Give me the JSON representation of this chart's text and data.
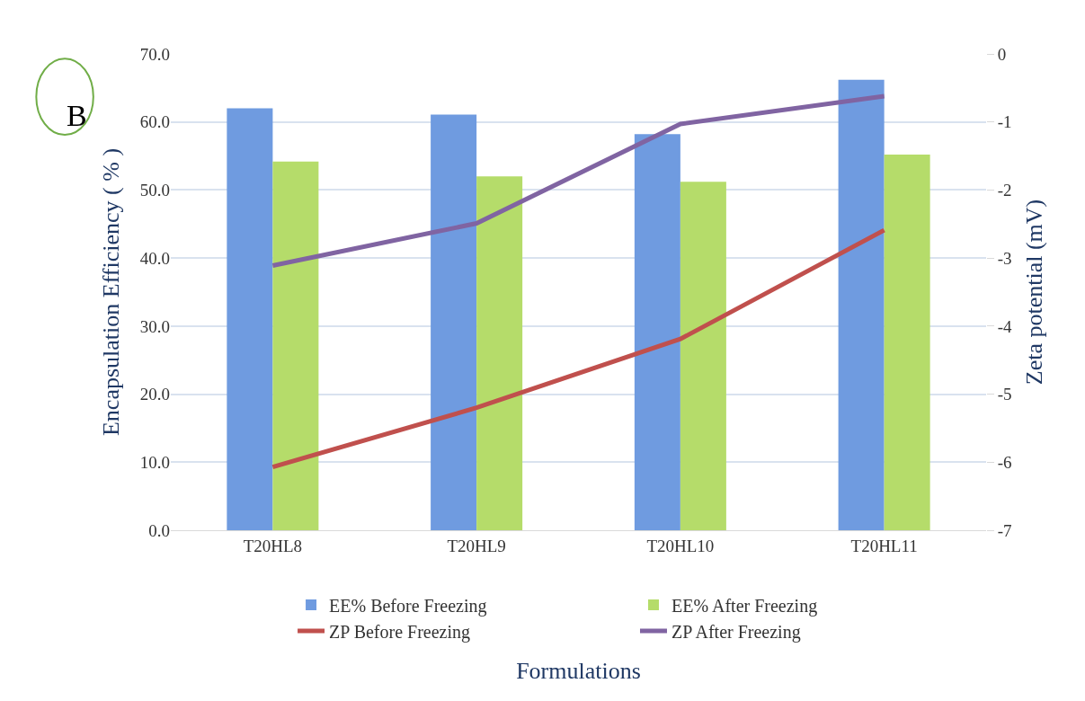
{
  "chart_data": {
    "type": "bar",
    "categories": [
      "T20HL8",
      "T20HL9",
      "T20HL10",
      "T20HL11"
    ],
    "xlabel": "Formulations",
    "ylabel": "Encapsulation Efficiency ( % )",
    "y2label": "Zeta potential (mV)",
    "annotations": [
      "B"
    ],
    "series": [
      {
        "name": "EE% Before Freezing",
        "color": "#6f9be0",
        "values": [
          62.0,
          61.1,
          58.2,
          66.2
        ]
      },
      {
        "name": "EE% After Freezing",
        "color": "#b5dc6a",
        "values": [
          54.2,
          52.0,
          51.2,
          55.2
        ]
      },
      {
        "name": "ZP Before Freezing",
        "type": "line",
        "axis": "y2",
        "color": "#c0504d",
        "values": [
          -6.07,
          -5.2,
          -4.19,
          -2.59
        ]
      },
      {
        "name": "ZP After Freezing",
        "type": "line",
        "axis": "y2",
        "color": "#8064a2",
        "values": [
          -3.11,
          -2.49,
          -1.03,
          -0.62
        ]
      }
    ],
    "ylim": [
      0,
      70
    ],
    "yticks": [
      {
        "value": 0,
        "label": "0.0"
      },
      {
        "value": 10,
        "label": "10.0"
      },
      {
        "value": 20,
        "label": "20.0"
      },
      {
        "value": 30,
        "label": "30.0"
      },
      {
        "value": 40,
        "label": "40.0"
      },
      {
        "value": 50,
        "label": "50.0"
      },
      {
        "value": 60,
        "label": "60.0"
      },
      {
        "value": 70,
        "label": "70.0"
      }
    ],
    "y2lim": [
      -7,
      0
    ],
    "y2ticks": [
      -7,
      -6,
      -5,
      -4,
      -3,
      -2,
      -1,
      0
    ],
    "grid": "y",
    "legend": "bottom",
    "marker": "none",
    "line_style": "solid"
  }
}
